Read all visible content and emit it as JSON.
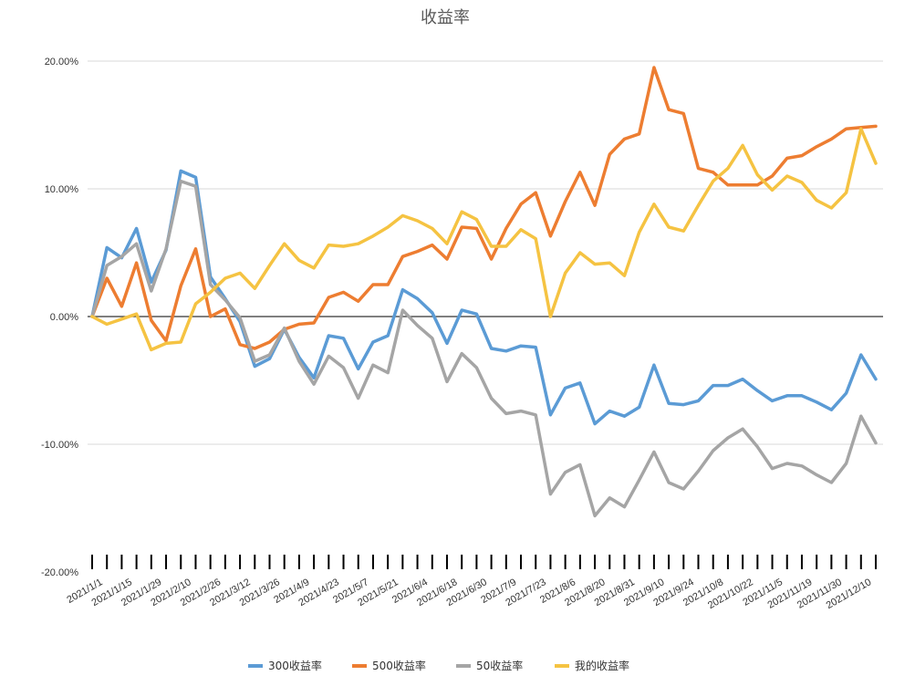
{
  "chart_data": {
    "type": "line",
    "title": "收益率",
    "xlabel": "",
    "ylabel": "",
    "ylim": [
      -0.2,
      0.2
    ],
    "yticks": [
      "20.00%",
      "10.00%",
      "0.00%",
      "-10.00%",
      "-20.00%"
    ],
    "ytick_values": [
      0.2,
      0.1,
      0.0,
      -0.1,
      -0.2
    ],
    "x_tick_labels": [
      "2021/1/1",
      "2021/1/15",
      "2021/1/29",
      "2021/2/10",
      "2021/2/26",
      "2021/3/12",
      "2021/3/26",
      "2021/4/9",
      "2021/4/23",
      "2021/5/7",
      "2021/5/21",
      "2021/6/4",
      "2021/6/18",
      "2021/6/30",
      "2021/7/9",
      "2021/7/23",
      "2021/8/6",
      "2021/8/20",
      "2021/8/31",
      "2021/9/10",
      "2021/9/24",
      "2021/10/8",
      "2021/10/22",
      "2021/11/5",
      "2021/11/19",
      "2021/11/30",
      "2021/12/10"
    ],
    "x_tick_positions": [
      0,
      2,
      4,
      6,
      8,
      10,
      12,
      14,
      16,
      18,
      20,
      22,
      24,
      26,
      28,
      30,
      32,
      34,
      36,
      38,
      40,
      42,
      44,
      46,
      48,
      50,
      52
    ],
    "legend_position": "bottom",
    "series": [
      {
        "name": "300收益率",
        "color": "#5B9BD5",
        "values": [
          0.0,
          0.054,
          0.046,
          0.069,
          0.027,
          0.052,
          0.114,
          0.109,
          0.031,
          0.014,
          -0.004,
          -0.039,
          -0.033,
          -0.01,
          -0.032,
          -0.048,
          -0.015,
          -0.017,
          -0.041,
          -0.02,
          -0.015,
          0.021,
          0.014,
          0.003,
          -0.021,
          0.005,
          0.002,
          -0.025,
          -0.027,
          -0.023,
          -0.024,
          -0.077,
          -0.056,
          -0.052,
          -0.084,
          -0.074,
          -0.078,
          -0.071,
          -0.038,
          -0.068,
          -0.069,
          -0.066,
          -0.054,
          -0.054,
          -0.049,
          -0.058,
          -0.066,
          -0.062,
          -0.062,
          -0.067,
          -0.073,
          -0.06,
          -0.03,
          -0.049
        ]
      },
      {
        "name": "500收益率",
        "color": "#ED7D31",
        "values": [
          0.0,
          0.03,
          0.008,
          0.042,
          -0.003,
          -0.019,
          0.024,
          0.053,
          0.0,
          0.006,
          -0.022,
          -0.025,
          -0.02,
          -0.01,
          -0.006,
          -0.005,
          0.015,
          0.019,
          0.012,
          0.025,
          0.025,
          0.047,
          0.051,
          0.056,
          0.045,
          0.07,
          0.069,
          0.045,
          0.069,
          0.088,
          0.097,
          0.063,
          0.09,
          0.113,
          0.087,
          0.127,
          0.139,
          0.143,
          0.195,
          0.162,
          0.159,
          0.116,
          0.113,
          0.103,
          0.103,
          0.103,
          0.11,
          0.124,
          0.126,
          0.133,
          0.139,
          0.147,
          0.148,
          0.149
        ]
      },
      {
        "name": "50收益率",
        "color": "#A5A5A5",
        "values": [
          0.0,
          0.04,
          0.047,
          0.057,
          0.02,
          0.053,
          0.106,
          0.102,
          0.025,
          0.013,
          -0.001,
          -0.035,
          -0.03,
          -0.009,
          -0.035,
          -0.053,
          -0.031,
          -0.04,
          -0.064,
          -0.038,
          -0.044,
          0.005,
          -0.007,
          -0.017,
          -0.051,
          -0.029,
          -0.04,
          -0.064,
          -0.076,
          -0.074,
          -0.077,
          -0.139,
          -0.122,
          -0.116,
          -0.156,
          -0.142,
          -0.149,
          -0.128,
          -0.106,
          -0.13,
          -0.135,
          -0.121,
          -0.105,
          -0.095,
          -0.088,
          -0.102,
          -0.119,
          -0.115,
          -0.117,
          -0.124,
          -0.13,
          -0.115,
          -0.078,
          -0.099
        ]
      },
      {
        "name": "我的收益率",
        "color": "#F5C342",
        "values": [
          0.0,
          -0.006,
          -0.002,
          0.002,
          -0.026,
          -0.021,
          -0.02,
          0.01,
          0.019,
          0.03,
          0.034,
          0.022,
          0.04,
          0.057,
          0.044,
          0.038,
          0.056,
          0.055,
          0.057,
          0.063,
          0.07,
          0.079,
          0.075,
          0.069,
          0.057,
          0.082,
          0.076,
          0.055,
          0.055,
          0.068,
          0.061,
          0.0,
          0.034,
          0.05,
          0.041,
          0.042,
          0.032,
          0.066,
          0.088,
          0.07,
          0.067,
          0.087,
          0.106,
          0.116,
          0.134,
          0.111,
          0.099,
          0.11,
          0.105,
          0.091,
          0.085,
          0.097,
          0.147,
          0.12
        ]
      }
    ]
  }
}
